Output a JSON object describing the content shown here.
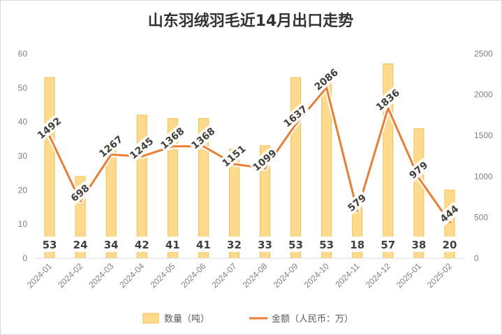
{
  "chart_data": {
    "type": "bar+line",
    "title": "山东羽绒羽毛近14月出口走势",
    "categories": [
      "2024-01",
      "2024-02",
      "2024-03",
      "2024-04",
      "2024-05",
      "2024-06",
      "2024-07",
      "2024-08",
      "2024-09",
      "2024-10",
      "2024-11",
      "2024-12",
      "2025-01",
      "2025-02"
    ],
    "series": [
      {
        "name": "数量（吨）",
        "type": "bar",
        "axis": "left",
        "color": "#FFD98C",
        "values": [
          53,
          24,
          34,
          42,
          41,
          41,
          32,
          33,
          53,
          53,
          18,
          57,
          38,
          20
        ]
      },
      {
        "name": "金额（人民币：万）",
        "type": "line",
        "axis": "right",
        "color": "#ED7D31",
        "values": [
          1492,
          698,
          1267,
          1245,
          1368,
          1368,
          1151,
          1099,
          1637,
          2086,
          579,
          1836,
          979,
          444
        ]
      }
    ],
    "y_left": {
      "min": 0,
      "max": 60,
      "ticks": [
        0,
        10,
        20,
        30,
        40,
        50,
        60
      ]
    },
    "y_right": {
      "min": 0,
      "max": 2500,
      "ticks": [
        0,
        500,
        1000,
        1500,
        2000,
        2500
      ]
    },
    "legend": {
      "position": "bottom"
    },
    "grid": false
  }
}
